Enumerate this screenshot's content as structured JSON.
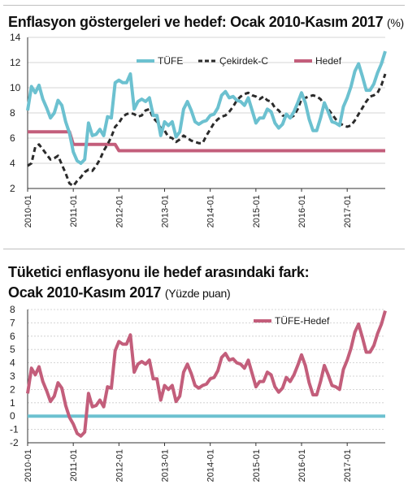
{
  "charts": {
    "top": {
      "title": "Enflasyon göstergeleri ve hedef: Ocak 2010-Kasım 2017",
      "unit": "(%)"
    },
    "bottom": {
      "title_line1": "Tüketici enflasyonu ile hedef arasındaki fark:",
      "title_line2": "Ocak 2010-Kasım 2017",
      "unit": "(Yüzde puan)"
    }
  },
  "chart_data": [
    {
      "type": "line",
      "title": "Enflasyon göstergeleri ve hedef: Ocak 2010-Kasım 2017",
      "unit": "(%)",
      "x_ticks": [
        "2010-01",
        "2011-01",
        "2012-01",
        "2013-01",
        "2014-01",
        "2015-01",
        "2016-01",
        "2017-01"
      ],
      "ylim": [
        2,
        14
      ],
      "yticks": [
        "2",
        "4",
        "6",
        "8",
        "10",
        "12",
        "14"
      ],
      "grid": "horizontal",
      "legend": "top-center",
      "series": [
        {
          "name": "TÜFE",
          "color": "#6cc1d0",
          "style": "solid",
          "values": [
            8.2,
            10.1,
            9.6,
            10.2,
            9.1,
            8.4,
            7.6,
            8.0,
            9.0,
            8.6,
            7.3,
            6.4,
            4.9,
            4.2,
            4.0,
            4.3,
            7.2,
            6.2,
            6.3,
            6.7,
            6.2,
            7.7,
            7.6,
            10.4,
            10.6,
            10.4,
            10.4,
            11.1,
            8.3,
            8.9,
            9.1,
            8.9,
            9.2,
            7.8,
            7.8,
            6.2,
            7.3,
            7.0,
            7.3,
            6.1,
            6.5,
            8.3,
            8.9,
            8.2,
            7.3,
            7.1,
            7.3,
            7.4,
            7.8,
            7.9,
            8.4,
            9.4,
            9.7,
            9.2,
            9.3,
            9.0,
            8.9,
            8.6,
            9.2,
            8.2,
            7.2,
            7.6,
            7.6,
            8.3,
            8.1,
            7.2,
            6.8,
            7.1,
            7.9,
            7.6,
            8.1,
            8.8,
            9.6,
            8.8,
            7.5,
            6.6,
            6.6,
            7.6,
            8.8,
            8.1,
            7.3,
            7.2,
            7.0,
            8.5,
            9.2,
            10.1,
            11.3,
            11.9,
            10.9,
            9.8,
            9.8,
            10.3,
            11.2,
            11.9,
            12.9
          ]
        },
        {
          "name": "Çekirdek-C",
          "color": "#2b2b2b",
          "style": "dashed",
          "values": [
            3.8,
            4.0,
            5.3,
            5.5,
            5.1,
            4.7,
            4.3,
            4.4,
            4.6,
            3.9,
            3.2,
            2.4,
            2.2,
            2.6,
            2.9,
            3.3,
            3.5,
            3.4,
            3.8,
            4.3,
            5.0,
            5.5,
            6.1,
            6.9,
            7.2,
            7.7,
            7.9,
            8.0,
            7.9,
            7.7,
            7.8,
            8.2,
            8.3,
            7.6,
            7.3,
            6.8,
            6.6,
            6.1,
            6.0,
            5.7,
            5.9,
            6.2,
            6.0,
            5.8,
            5.7,
            5.6,
            5.6,
            6.2,
            6.7,
            7.2,
            7.5,
            7.7,
            7.8,
            8.1,
            8.5,
            9.0,
            9.3,
            9.5,
            9.6,
            9.4,
            9.3,
            9.1,
            9.3,
            9.0,
            8.9,
            8.4,
            8.2,
            7.8,
            7.7,
            7.6,
            7.8,
            8.3,
            9.1,
            9.2,
            9.3,
            9.4,
            9.3,
            9.1,
            8.6,
            8.3,
            7.9,
            7.5,
            7.2,
            7.0,
            6.9,
            7.0,
            7.4,
            7.9,
            8.4,
            8.9,
            9.3,
            9.4,
            9.6,
            10.2,
            11.1
          ]
        },
        {
          "name": "Hedef",
          "color": "#c35e7b",
          "style": "solid",
          "values": [
            6.5,
            6.5,
            6.5,
            6.5,
            6.5,
            6.5,
            6.5,
            6.5,
            6.5,
            6.5,
            6.5,
            6.5,
            5.5,
            5.5,
            5.5,
            5.5,
            5.5,
            5.5,
            5.5,
            5.5,
            5.5,
            5.5,
            5.5,
            5.5,
            5,
            5,
            5,
            5,
            5,
            5,
            5,
            5,
            5,
            5,
            5,
            5,
            5,
            5,
            5,
            5,
            5,
            5,
            5,
            5,
            5,
            5,
            5,
            5,
            5,
            5,
            5,
            5,
            5,
            5,
            5,
            5,
            5,
            5,
            5,
            5,
            5,
            5,
            5,
            5,
            5,
            5,
            5,
            5,
            5,
            5,
            5,
            5,
            5,
            5,
            5,
            5,
            5,
            5,
            5,
            5,
            5,
            5,
            5,
            5,
            5,
            5,
            5,
            5,
            5,
            5,
            5,
            5,
            5,
            5,
            5
          ]
        }
      ]
    },
    {
      "type": "line",
      "title": "Tüketici enflasyonu ile hedef arasındaki fark: Ocak 2010-Kasım 2017",
      "unit": "(Yüzde puan)",
      "x_ticks": [
        "2010-01",
        "2011-01",
        "2012-01",
        "2013-01",
        "2014-01",
        "2015-01",
        "2016-01",
        "2017-01"
      ],
      "ylim": [
        -2,
        8
      ],
      "yticks": [
        "-2",
        "-1",
        "0",
        "1",
        "2",
        "3",
        "4",
        "5",
        "6",
        "7",
        "8"
      ],
      "grid": "horizontal",
      "legend": "top-center",
      "reference_line": {
        "value": 0,
        "color": "#6cc1d0"
      },
      "series": [
        {
          "name": "TÜFE-Hedef",
          "color": "#c35e7b",
          "style": "solid",
          "values": [
            1.7,
            3.6,
            3.1,
            3.7,
            2.6,
            1.9,
            1.1,
            1.5,
            2.5,
            2.1,
            0.8,
            -0.1,
            -0.6,
            -1.3,
            -1.5,
            -1.2,
            1.7,
            0.7,
            0.8,
            1.2,
            0.7,
            2.2,
            2.1,
            4.9,
            5.6,
            5.4,
            5.4,
            6.1,
            3.3,
            3.9,
            4.1,
            3.9,
            4.2,
            2.8,
            2.8,
            1.2,
            2.3,
            2.0,
            2.3,
            1.1,
            1.5,
            3.3,
            3.9,
            3.2,
            2.3,
            2.1,
            2.3,
            2.4,
            2.8,
            2.9,
            3.4,
            4.4,
            4.7,
            4.2,
            4.3,
            4.0,
            3.9,
            3.6,
            4.2,
            3.2,
            2.2,
            2.6,
            2.6,
            3.3,
            3.1,
            2.2,
            1.8,
            2.1,
            2.9,
            2.6,
            3.1,
            3.8,
            4.6,
            3.8,
            2.5,
            1.6,
            1.6,
            2.6,
            3.8,
            3.1,
            2.3,
            2.2,
            2.0,
            3.5,
            4.2,
            5.1,
            6.3,
            6.9,
            5.9,
            4.8,
            4.8,
            5.3,
            6.2,
            6.9,
            7.9
          ]
        }
      ]
    }
  ]
}
